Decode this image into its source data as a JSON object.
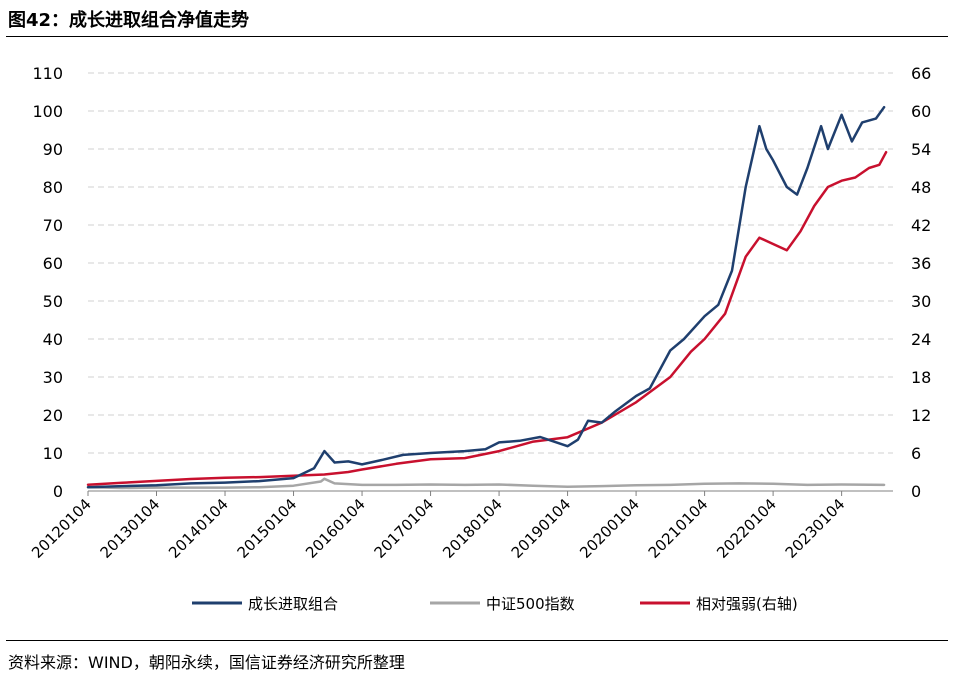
{
  "header": {
    "title": "图42：成长进取组合净值走势"
  },
  "footer": {
    "source": "资料来源：WIND，朝阳永续，国信证券经济研究所整理"
  },
  "chart_data": {
    "type": "line",
    "title": "图42：成长进取组合净值走势",
    "x_ticks": [
      "20120104",
      "20130104",
      "20140104",
      "20150104",
      "20160104",
      "20170104",
      "20180104",
      "20190104",
      "20200104",
      "20210104",
      "20220104",
      "20230104"
    ],
    "x_range": [
      2012.0,
      2023.65
    ],
    "y_left": {
      "min": 0,
      "max": 110,
      "ticks": [
        "0",
        "10",
        "20",
        "30",
        "40",
        "50",
        "60",
        "70",
        "80",
        "90",
        "100",
        "110"
      ]
    },
    "y_right": {
      "min": 0,
      "max": 66,
      "ticks": [
        "0",
        "6",
        "12",
        "18",
        "24",
        "30",
        "36",
        "42",
        "48",
        "54",
        "60",
        "66"
      ]
    },
    "grid": "horizontal dashed",
    "legend_position": "bottom",
    "series": [
      {
        "name": "成长进取组合",
        "axis": "left",
        "color": "#1f3f6e",
        "points": [
          [
            2012.0,
            1.0
          ],
          [
            2012.5,
            1.3
          ],
          [
            2013.0,
            1.5
          ],
          [
            2013.5,
            2.0
          ],
          [
            2014.0,
            2.2
          ],
          [
            2014.5,
            2.6
          ],
          [
            2015.0,
            3.4
          ],
          [
            2015.3,
            6.0
          ],
          [
            2015.45,
            10.5
          ],
          [
            2015.6,
            7.5
          ],
          [
            2015.8,
            7.8
          ],
          [
            2016.0,
            7.0
          ],
          [
            2016.3,
            8.2
          ],
          [
            2016.6,
            9.5
          ],
          [
            2017.0,
            10.0
          ],
          [
            2017.5,
            10.5
          ],
          [
            2017.8,
            11.0
          ],
          [
            2018.0,
            12.8
          ],
          [
            2018.3,
            13.2
          ],
          [
            2018.6,
            14.2
          ],
          [
            2018.8,
            13.0
          ],
          [
            2019.0,
            11.8
          ],
          [
            2019.15,
            13.5
          ],
          [
            2019.3,
            18.5
          ],
          [
            2019.5,
            18.0
          ],
          [
            2019.7,
            21.0
          ],
          [
            2020.0,
            25.0
          ],
          [
            2020.2,
            27.0
          ],
          [
            2020.5,
            37.0
          ],
          [
            2020.7,
            40.0
          ],
          [
            2021.0,
            46.0
          ],
          [
            2021.2,
            49.0
          ],
          [
            2021.4,
            58.0
          ],
          [
            2021.6,
            80.0
          ],
          [
            2021.8,
            96.0
          ],
          [
            2021.9,
            90.0
          ],
          [
            2022.0,
            87.0
          ],
          [
            2022.2,
            80.0
          ],
          [
            2022.35,
            78.0
          ],
          [
            2022.5,
            85.0
          ],
          [
            2022.7,
            96.0
          ],
          [
            2022.8,
            90.0
          ],
          [
            2023.0,
            99.0
          ],
          [
            2023.15,
            92.0
          ],
          [
            2023.3,
            97.0
          ],
          [
            2023.5,
            98.0
          ],
          [
            2023.62,
            101.0
          ]
        ]
      },
      {
        "name": "中证500指数",
        "axis": "left",
        "color": "#a6a6a6",
        "points": [
          [
            2012.0,
            1.0
          ],
          [
            2012.5,
            0.8
          ],
          [
            2013.0,
            0.9
          ],
          [
            2013.5,
            0.9
          ],
          [
            2014.0,
            0.9
          ],
          [
            2014.5,
            1.0
          ],
          [
            2015.0,
            1.4
          ],
          [
            2015.4,
            2.5
          ],
          [
            2015.45,
            3.2
          ],
          [
            2015.6,
            2.0
          ],
          [
            2016.0,
            1.6
          ],
          [
            2016.5,
            1.6
          ],
          [
            2017.0,
            1.7
          ],
          [
            2017.5,
            1.6
          ],
          [
            2018.0,
            1.7
          ],
          [
            2018.5,
            1.4
          ],
          [
            2019.0,
            1.1
          ],
          [
            2019.5,
            1.3
          ],
          [
            2020.0,
            1.5
          ],
          [
            2020.5,
            1.6
          ],
          [
            2021.0,
            1.9
          ],
          [
            2021.5,
            2.0
          ],
          [
            2022.0,
            1.9
          ],
          [
            2022.5,
            1.6
          ],
          [
            2023.0,
            1.7
          ],
          [
            2023.62,
            1.6
          ]
        ]
      },
      {
        "name": "相对强弱(右轴)",
        "axis": "right",
        "color": "#c8102e",
        "points": [
          [
            2012.0,
            1.0
          ],
          [
            2012.5,
            1.3
          ],
          [
            2013.0,
            1.6
          ],
          [
            2013.5,
            1.9
          ],
          [
            2014.0,
            2.1
          ],
          [
            2014.5,
            2.2
          ],
          [
            2015.0,
            2.4
          ],
          [
            2015.45,
            2.6
          ],
          [
            2015.8,
            3.0
          ],
          [
            2016.0,
            3.4
          ],
          [
            2016.5,
            4.3
          ],
          [
            2017.0,
            5.0
          ],
          [
            2017.5,
            5.2
          ],
          [
            2018.0,
            6.3
          ],
          [
            2018.5,
            7.8
          ],
          [
            2019.0,
            8.5
          ],
          [
            2019.5,
            10.8
          ],
          [
            2020.0,
            14.0
          ],
          [
            2020.5,
            18.0
          ],
          [
            2020.8,
            22.0
          ],
          [
            2021.0,
            24.0
          ],
          [
            2021.3,
            28.0
          ],
          [
            2021.6,
            37.0
          ],
          [
            2021.8,
            40.0
          ],
          [
            2022.0,
            39.0
          ],
          [
            2022.2,
            38.0
          ],
          [
            2022.4,
            41.0
          ],
          [
            2022.6,
            45.0
          ],
          [
            2022.8,
            48.0
          ],
          [
            2023.0,
            49.0
          ],
          [
            2023.2,
            49.5
          ],
          [
            2023.4,
            51.0
          ],
          [
            2023.55,
            51.5
          ],
          [
            2023.65,
            53.5
          ]
        ]
      }
    ]
  }
}
